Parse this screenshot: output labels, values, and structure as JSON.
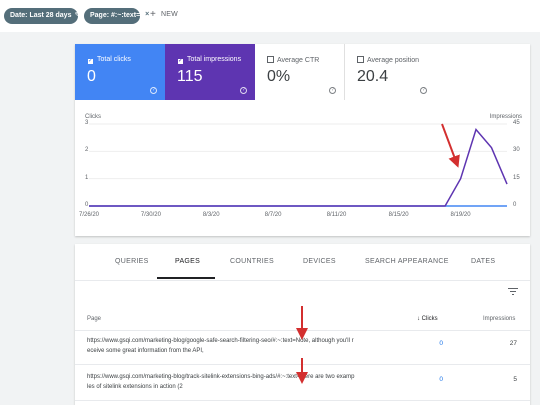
{
  "filters": {
    "date_chip": "Date: Last 28 days",
    "page_chip": "Page: #:~:text=",
    "new_label": "NEW"
  },
  "metrics": {
    "clicks": {
      "label": "Total clicks",
      "value": "0"
    },
    "impressions": {
      "label": "Total impressions",
      "value": "115"
    },
    "ctr": {
      "label": "Average CTR",
      "value": "0%"
    },
    "position": {
      "label": "Average position",
      "value": "20.4"
    }
  },
  "chart_data": {
    "type": "line",
    "x_ticks": [
      "7/26/20",
      "7/30/20",
      "8/3/20",
      "8/7/20",
      "8/11/20",
      "8/15/20",
      "8/19/20"
    ],
    "left_axis": {
      "title": "Clicks",
      "ticks": [
        "3",
        "2",
        "1",
        "0"
      ],
      "range": [
        0,
        3
      ]
    },
    "right_axis": {
      "title": "Impressions",
      "ticks": [
        "45",
        "30",
        "15",
        "0"
      ],
      "range": [
        0,
        45
      ]
    },
    "series": [
      {
        "color": "#4285f4",
        "axis": "left",
        "x": [
          "7/26/20",
          "8/17/20",
          "8/18/20",
          "8/19/20",
          "8/20/20",
          "8/21/20",
          "8/22/20"
        ],
        "values": [
          0,
          0,
          0,
          0,
          0,
          0,
          0
        ]
      },
      {
        "color": "#5e35b1",
        "axis": "right",
        "x": [
          "7/26/20",
          "8/17/20",
          "8/18/20",
          "8/19/20",
          "8/20/20",
          "8/21/20",
          "8/22/20"
        ],
        "values": [
          0,
          0,
          0,
          15,
          42,
          32,
          12
        ]
      }
    ]
  },
  "tabs": [
    "QUERIES",
    "PAGES",
    "COUNTRIES",
    "DEVICES",
    "SEARCH APPEARANCE",
    "DATES"
  ],
  "table": {
    "headers": {
      "page": "Page",
      "clicks": "Clicks",
      "impressions": "Impressions"
    },
    "rows": [
      {
        "url_line1": "https://www.gsqi.com/marketing-blog/google-safe-search-filtering-seo/#:~:text=Note, although you'll r",
        "url_line2": "eceive some great information from the API,",
        "clicks": "0",
        "impressions": "27"
      },
      {
        "url_line1": "https://www.gsqi.com/marketing-blog/track-sitelink-extensions-bing-ads/#:~:text=Here are two examp",
        "url_line2": "les of sitelink extensions in action (2",
        "clicks": "0",
        "impressions": "5"
      }
    ]
  },
  "annotation_color": "#d32f2f"
}
